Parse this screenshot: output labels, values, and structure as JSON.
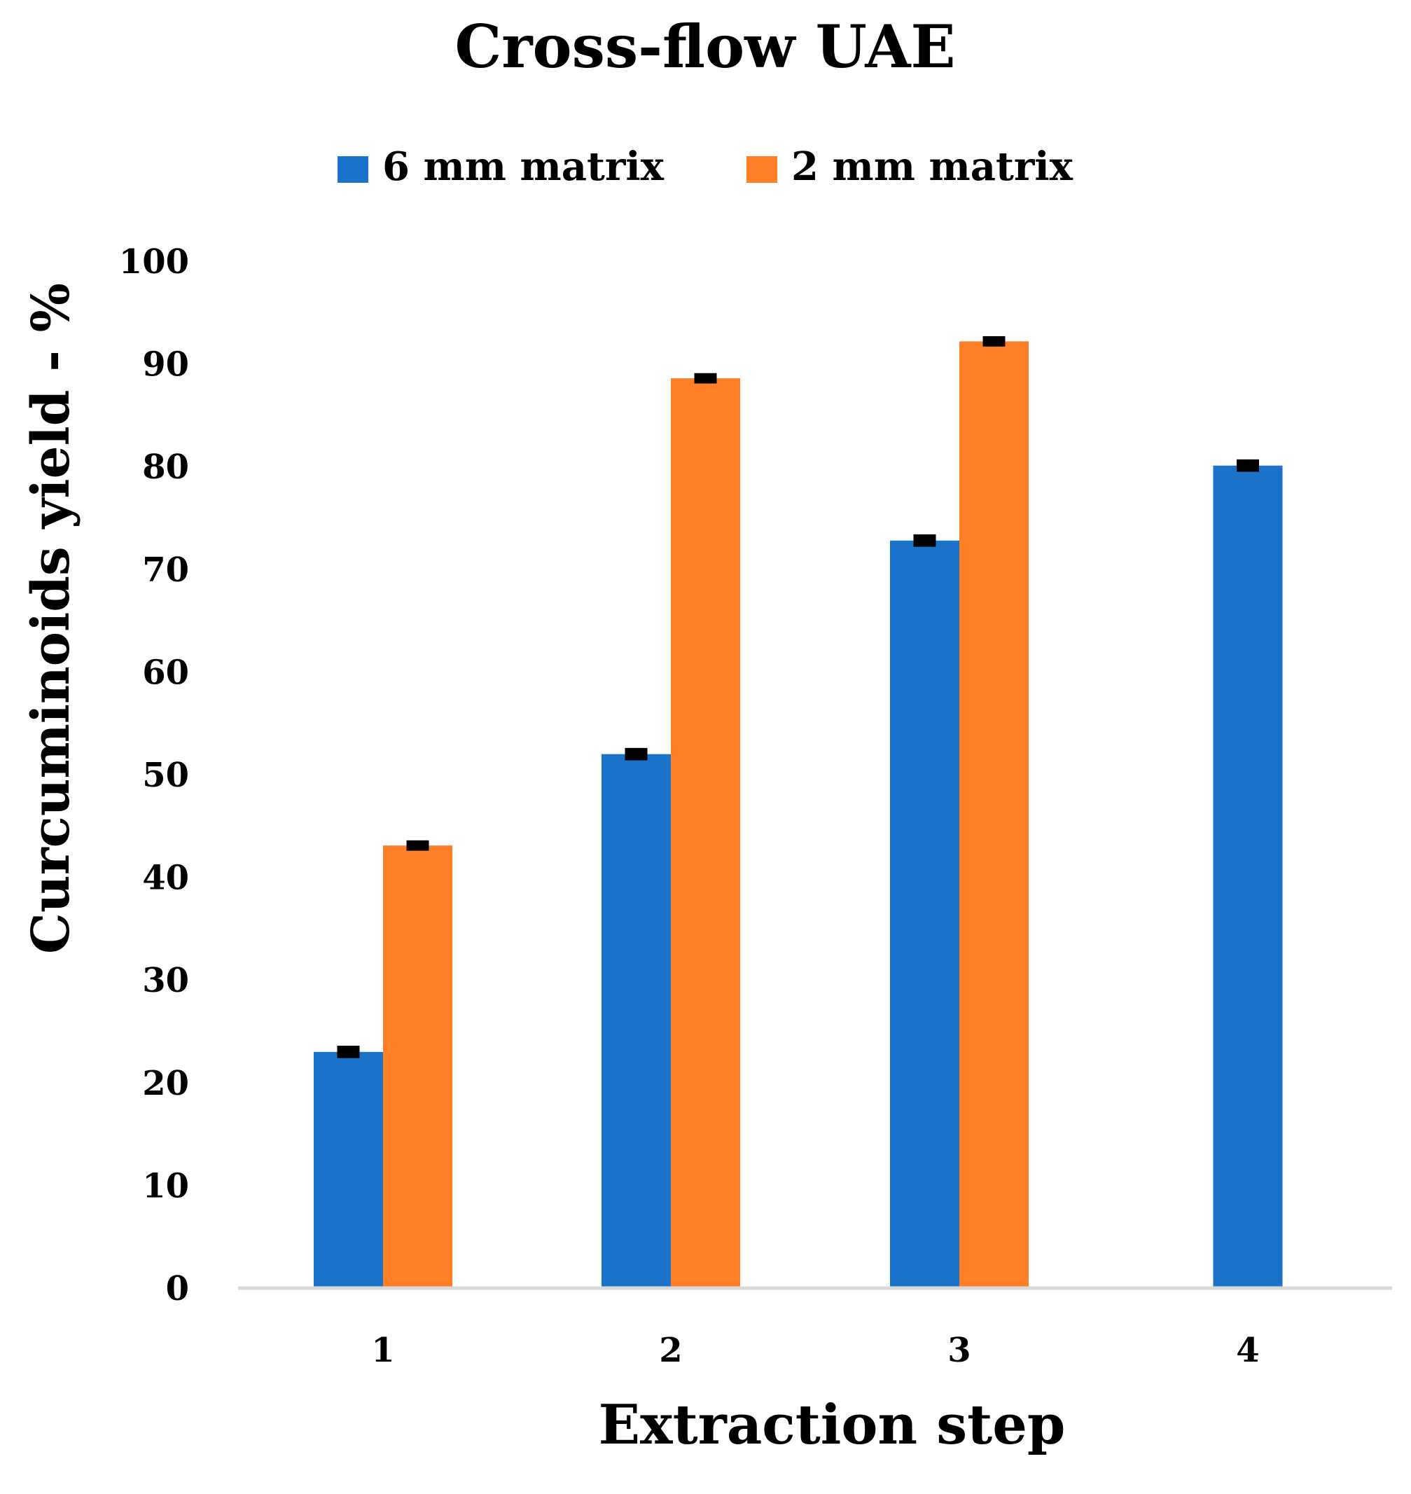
{
  "chart_data": {
    "type": "bar",
    "title": "Cross-flow UAE",
    "xlabel": "Extraction step",
    "ylabel": "Curcuminoids yield - %",
    "categories": [
      "1",
      "2",
      "3",
      "4"
    ],
    "ylim": [
      0,
      100
    ],
    "yticks": [
      0,
      10,
      20,
      30,
      40,
      50,
      60,
      70,
      80,
      90,
      100
    ],
    "ytick_labels": [
      "0",
      "10",
      "20",
      "30",
      "40",
      "50",
      "60",
      "70",
      "80",
      "90",
      "100"
    ],
    "grid": false,
    "legend_position": "top-center",
    "series": [
      {
        "name": "6 mm matrix",
        "color": "#1A73C8",
        "values": [
          23,
          52,
          72.8,
          80.1
        ],
        "errors": [
          0.4,
          0.4,
          0.4,
          0.4
        ]
      },
      {
        "name": "2 mm matrix",
        "color": "#FF7F27",
        "values": [
          43.1,
          88.6,
          92.2,
          null
        ],
        "errors": [
          0.3,
          0.3,
          0.3,
          null
        ]
      }
    ]
  }
}
